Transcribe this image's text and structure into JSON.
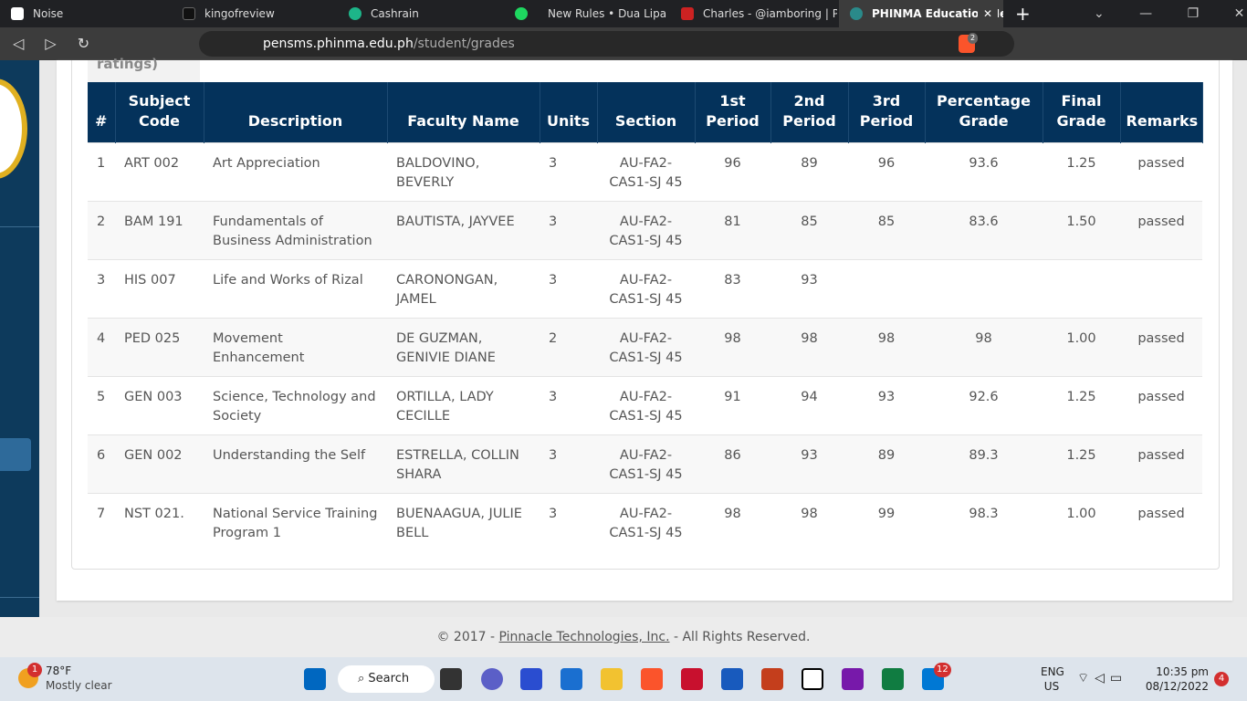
{
  "browser": {
    "tabs": [
      "Noise",
      "kingofreview",
      "Cashrain",
      "New Rules • Dua Lipa",
      "Charles - @iamboring | Pea",
      "PHINMA Education Ne"
    ],
    "url_host": "pensms.phinma.edu.ph",
    "url_path": "/student/grades",
    "extension_badge": "2"
  },
  "page": {
    "partial_heading": "ratings)",
    "table": {
      "columns": [
        "#",
        "Subject Code",
        "Description",
        "Faculty Name",
        "Units",
        "Section",
        "1st Period",
        "2nd Period",
        "3rd Period",
        "Percentage Grade",
        "Final Grade",
        "Remarks"
      ],
      "rows": [
        [
          "1",
          "ART 002",
          "Art Appreciation",
          "BALDOVINO, BEVERLY",
          "3",
          "AU-FA2-CAS1-SJ 45",
          "96",
          "89",
          "96",
          "93.6",
          "1.25",
          "passed"
        ],
        [
          "2",
          "BAM 191",
          "Fundamentals of Business Administration",
          "BAUTISTA, JAYVEE",
          "3",
          "AU-FA2-CAS1-SJ 45",
          "81",
          "85",
          "85",
          "83.6",
          "1.50",
          "passed"
        ],
        [
          "3",
          "HIS 007",
          "Life and Works of Rizal",
          "CARONONGAN, JAMEL",
          "3",
          "AU-FA2-CAS1-SJ 45",
          "83",
          "93",
          null,
          null,
          null,
          null
        ],
        [
          "4",
          "PED 025",
          "Movement Enhancement",
          "DE GUZMAN, GENIVIE DIANE",
          "2",
          "AU-FA2-CAS1-SJ 45",
          "98",
          "98",
          "98",
          "98",
          "1.00",
          "passed"
        ],
        [
          "5",
          "GEN 003",
          "Science, Technology and Society",
          "ORTILLA, LADY CECILLE",
          "3",
          "AU-FA2-CAS1-SJ 45",
          "91",
          "94",
          "93",
          "92.6",
          "1.25",
          "passed"
        ],
        [
          "6",
          "GEN 002",
          "Understanding the Self",
          "ESTRELLA, COLLIN SHARA",
          "3",
          "AU-FA2-CAS1-SJ 45",
          "86",
          "93",
          "89",
          "89.3",
          "1.25",
          "passed"
        ],
        [
          "7",
          "NST 021.",
          "National Service Training Program 1",
          "BUENAAGUA, JULIE BELL",
          "3",
          "AU-FA2-CAS1-SJ 45",
          "98",
          "98",
          "99",
          "98.3",
          "1.00",
          "passed"
        ]
      ]
    },
    "footer": {
      "prefix": "© 2017 -",
      "link": "Pinnacle Technologies, Inc.",
      "suffix": "- All Rights Reserved."
    }
  },
  "taskbar": {
    "weather_badge": "1",
    "temperature": "78°F",
    "condition": "Mostly clear",
    "search": "Search",
    "teams_badge": "12",
    "language": "ENG",
    "region": "US",
    "time": "10:35 pm",
    "date": "08/12/2022",
    "notification_count": "4"
  }
}
